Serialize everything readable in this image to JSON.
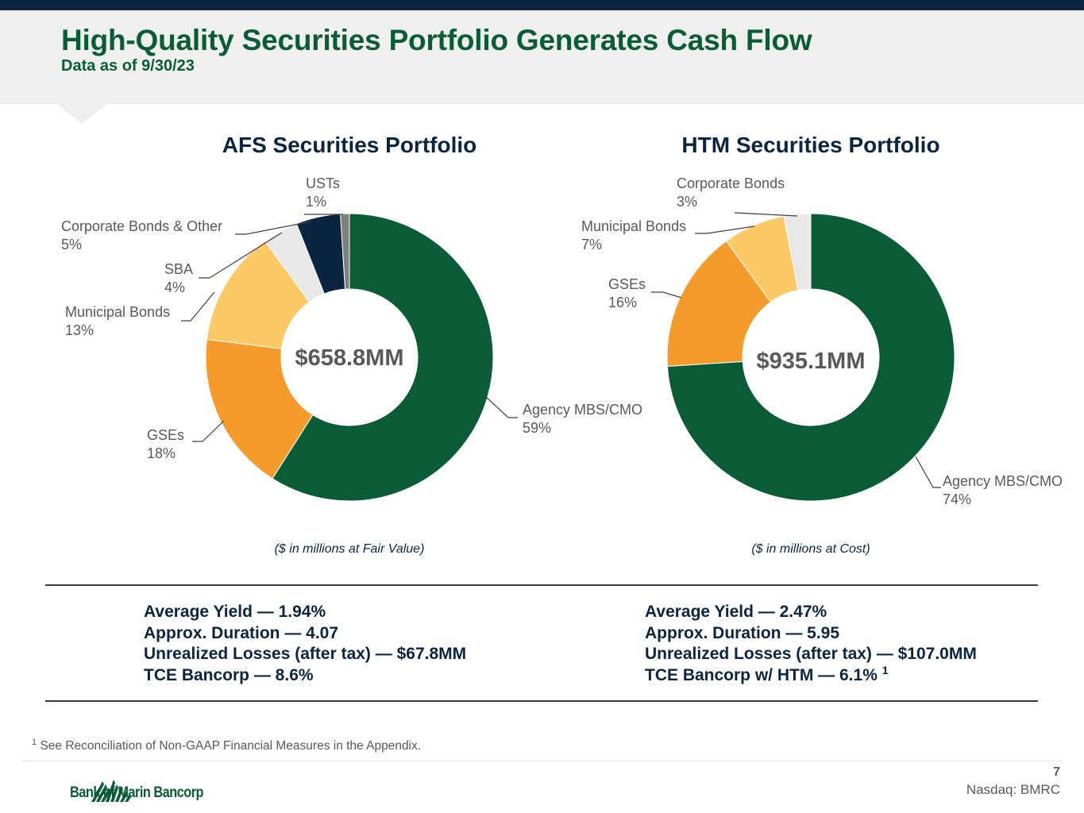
{
  "header": {
    "title": "High-Quality Securities Portfolio Generates Cash Flow",
    "subtitle": "Data as of 9/30/23"
  },
  "chart_data": [
    {
      "type": "pie",
      "title": "AFS Securities Portfolio",
      "center_label": "$658.8MM",
      "note": "($ in millions at Fair Value)",
      "categories": [
        "Agency MBS/CMO",
        "GSEs",
        "Municipal Bonds",
        "SBA",
        "Corporate Bonds & Other",
        "USTs"
      ],
      "values": [
        59,
        18,
        13,
        4,
        5,
        1
      ],
      "value_labels": [
        "59%",
        "18%",
        "13%",
        "4%",
        "5%",
        "1%"
      ],
      "colors": [
        "#0a5c36",
        "#f59b2c",
        "#fcc966",
        "#e8e8e8",
        "#0b2540",
        "#7f7f7f"
      ]
    },
    {
      "type": "pie",
      "title": "HTM Securities Portfolio",
      "center_label": "$935.1MM",
      "note": "($ in millions at Cost)",
      "categories": [
        "Agency MBS/CMO",
        "GSEs",
        "Municipal Bonds",
        "Corporate Bonds"
      ],
      "values": [
        74,
        16,
        7,
        3
      ],
      "value_labels": [
        "74%",
        "16%",
        "7%",
        "3%"
      ],
      "colors": [
        "#0a5c36",
        "#f59b2c",
        "#fcc966",
        "#e8e8e8"
      ]
    }
  ],
  "afs_stats": {
    "yield": "Average Yield — 1.94%",
    "duration": "Approx. Duration — 4.07",
    "losses": "Unrealized Losses (after tax) — $67.8MM",
    "tce": "TCE Bancorp — 8.6%"
  },
  "htm_stats": {
    "yield": "Average Yield — 2.47%",
    "duration": "Approx. Duration — 5.95",
    "losses": "Unrealized Losses (after tax) — $107.0MM",
    "tce": "TCE Bancorp w/ HTM — 6.1%",
    "tce_footnote_mark": "1"
  },
  "footnote": {
    "mark": "1",
    "text": "See Reconciliation of Non-GAAP Financial Measures in the Appendix."
  },
  "footer": {
    "logo_text": "Bank of Marin Bancorp",
    "page_number": "7",
    "ticker": "Nasdaq: BMRC"
  }
}
